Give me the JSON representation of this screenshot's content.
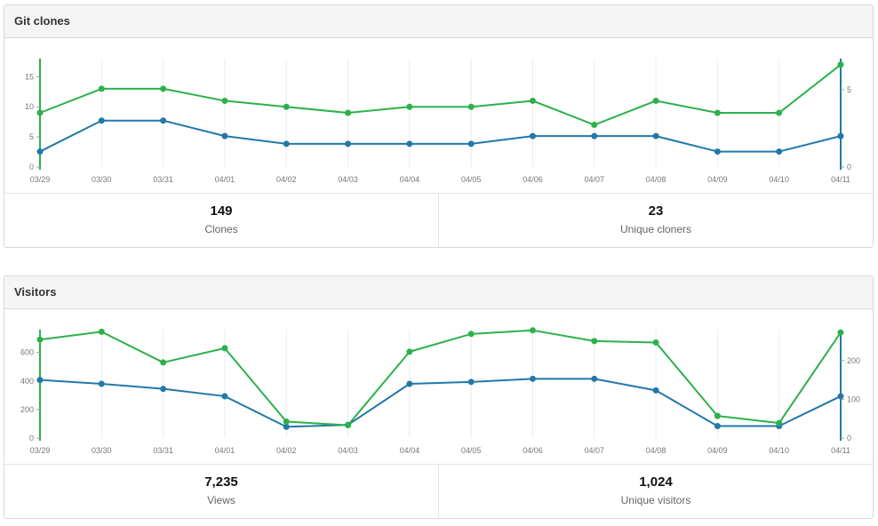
{
  "panels": {
    "clones": {
      "title": "Git clones",
      "stats": [
        {
          "value": "149",
          "label": "Clones"
        },
        {
          "value": "23",
          "label": "Unique cloners"
        }
      ]
    },
    "visitors": {
      "title": "Visitors",
      "stats": [
        {
          "value": "7,235",
          "label": "Views"
        },
        {
          "value": "1,024",
          "label": "Unique visitors"
        }
      ]
    }
  },
  "colors": {
    "total": "#2cb14a",
    "unique": "#2278a9"
  },
  "chart_data": [
    {
      "type": "line",
      "categories": [
        "03/29",
        "03/30",
        "03/31",
        "04/01",
        "04/02",
        "04/03",
        "04/04",
        "04/05",
        "04/06",
        "04/07",
        "04/08",
        "04/09",
        "04/10",
        "04/11"
      ],
      "left_axis": {
        "ylim": [
          0,
          18
        ],
        "ticks": [
          0,
          5,
          10,
          15
        ]
      },
      "right_axis": {
        "ylim": [
          0,
          7
        ],
        "ticks": [
          0,
          5
        ]
      },
      "series": [
        {
          "axis": "left",
          "color": "#2cb14a",
          "values": [
            9,
            13,
            13,
            11,
            10,
            9,
            10,
            10,
            11,
            7,
            11,
            9,
            9,
            17
          ]
        },
        {
          "axis": "right",
          "color": "#2278a9",
          "values": [
            1,
            3,
            3,
            2,
            1.5,
            1.5,
            1.5,
            1.5,
            2,
            2,
            2,
            1,
            1,
            2
          ]
        }
      ],
      "grid": "vertical"
    },
    {
      "type": "line",
      "categories": [
        "03/29",
        "03/30",
        "03/31",
        "04/01",
        "04/02",
        "04/03",
        "04/04",
        "04/05",
        "04/06",
        "04/07",
        "04/08",
        "04/09",
        "04/10",
        "04/11"
      ],
      "left_axis": {
        "ylim": [
          0,
          760
        ],
        "ticks": [
          0,
          200,
          400,
          600
        ]
      },
      "right_axis": {
        "ylim": [
          0,
          280
        ],
        "ticks": [
          0,
          100,
          200
        ]
      },
      "series": [
        {
          "axis": "left",
          "color": "#2cb14a",
          "values": [
            690,
            745,
            530,
            630,
            115,
            90,
            605,
            730,
            755,
            680,
            670,
            155,
            105,
            740
          ]
        },
        {
          "axis": "right",
          "color": "#2278a9",
          "values": [
            150,
            140,
            127,
            108,
            29,
            34,
            140,
            145,
            153,
            153,
            123,
            31,
            31,
            108
          ]
        }
      ],
      "grid": "vertical"
    }
  ]
}
